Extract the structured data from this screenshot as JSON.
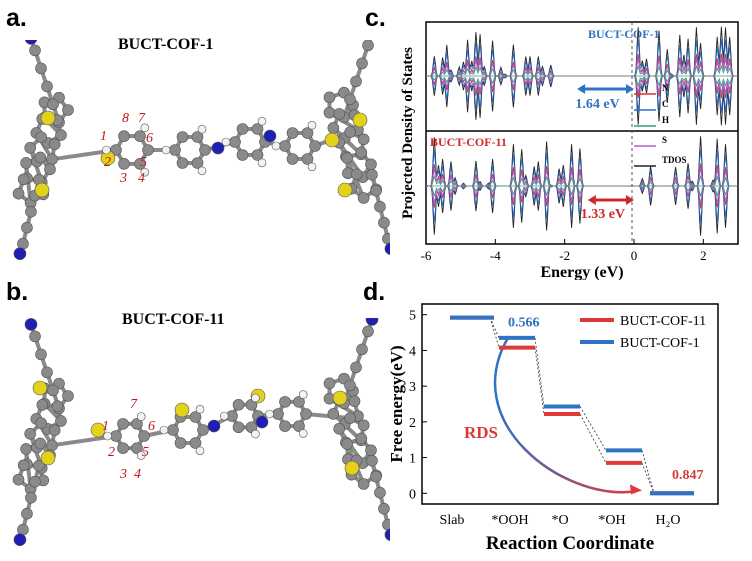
{
  "panels": {
    "a": {
      "letter": "a.",
      "title": "BUCT-COF-1",
      "atom_labels": [
        "1",
        "2",
        "3",
        "4",
        "5",
        "6",
        "7",
        "8"
      ]
    },
    "b": {
      "letter": "b.",
      "title": "BUCT-COF-11",
      "atom_labels": [
        "1",
        "2",
        "3",
        "4",
        "5",
        "6",
        "7"
      ]
    },
    "c": {
      "letter": "c."
    },
    "d": {
      "letter": "d."
    }
  },
  "colors": {
    "carbon": "#8a8a8a",
    "sulfur": "#e3d21a",
    "nitrogen": "#1f1fb4",
    "hydrogen": "#f2f2f2",
    "label_red": "#c01818",
    "cof11": "#e0393c",
    "cof1": "#2f73c6",
    "pdos_N": "#e03030",
    "pdos_C": "#2b6fd0",
    "pdos_H": "#2fa08a",
    "pdos_S": "#b060d0",
    "pdos_TDOS": "#222222"
  },
  "chart_data": [
    {
      "type": "line",
      "title": "",
      "xlabel": "Energy (eV)",
      "ylabel": "Projected Density of States",
      "xlim": [
        -6,
        3
      ],
      "x_ticks": [
        "-6",
        "-4",
        "-2",
        "0",
        "2"
      ],
      "top_label": "BUCT-COF-1",
      "bottom_label": "BUCT-COF-11",
      "legend": [
        "N",
        "C",
        "H",
        "S",
        "TDOS"
      ],
      "gaps": [
        {
          "system": "BUCT-COF-1",
          "label": "1.64 eV",
          "from": -1.64,
          "to": 0
        },
        {
          "system": "BUCT-COF-11",
          "label": "1.33 eV",
          "from": -1.33,
          "to": 0
        }
      ],
      "fermi_level": 0
    },
    {
      "type": "line",
      "title": "",
      "xlabel": "Reaction Coordinate",
      "ylabel": "Free energy(eV)",
      "ylim": [
        -0.3,
        5.3
      ],
      "y_ticks": [
        "0",
        "1",
        "2",
        "3",
        "4",
        "5"
      ],
      "categories": [
        "Slab",
        "*OOH",
        "*O",
        "*OH",
        "H2O"
      ],
      "category_labels": [
        "Slab",
        "*OOH",
        "*O",
        "*OH",
        "H₂O"
      ],
      "series": [
        {
          "name": "BUCT-COF-11",
          "values": [
            4.92,
            4.08,
            2.22,
            0.85,
            0.0
          ]
        },
        {
          "name": "BUCT-COF-1",
          "values": [
            4.92,
            4.35,
            2.43,
            1.2,
            0.0
          ]
        }
      ],
      "annotations": [
        {
          "text": "0.566",
          "series": "BUCT-COF-1"
        },
        {
          "text": "0.847",
          "series": "BUCT-COF-11"
        },
        {
          "text": "RDS"
        }
      ]
    }
  ]
}
